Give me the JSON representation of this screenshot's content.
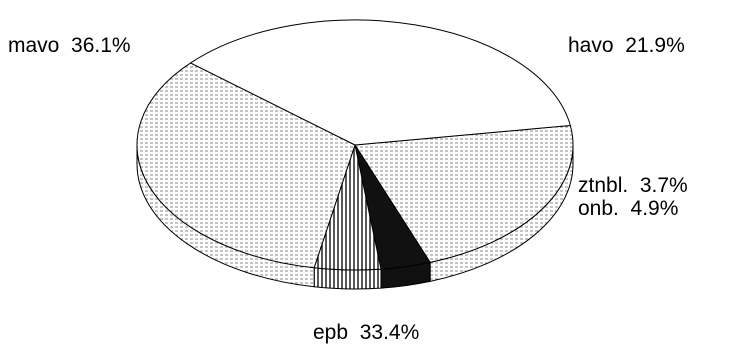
{
  "chart_data": {
    "type": "pie",
    "style": "3d",
    "slices": [
      {
        "category": "havo",
        "value": 21.9,
        "label": "havo  21.9%",
        "pattern": "horizontal-dotted-lines"
      },
      {
        "category": "ztnbl.",
        "value": 3.7,
        "label": "ztnbl.  3.7%",
        "pattern": "solid-black"
      },
      {
        "category": "onb.",
        "value": 4.9,
        "label": "onb.  4.9%",
        "pattern": "vertical-lines"
      },
      {
        "category": "epb",
        "value": 33.4,
        "label": "epb  33.4%",
        "pattern": "horizontal-dotted-lines"
      },
      {
        "category": "mavo",
        "value": 36.1,
        "label": "mavo  36.1%",
        "pattern": "white"
      }
    ],
    "value_unit": "%",
    "colors": {
      "fill": "#ffffff",
      "ink": "#000000",
      "dark": "#111111",
      "line": "#8a8a8a"
    }
  }
}
